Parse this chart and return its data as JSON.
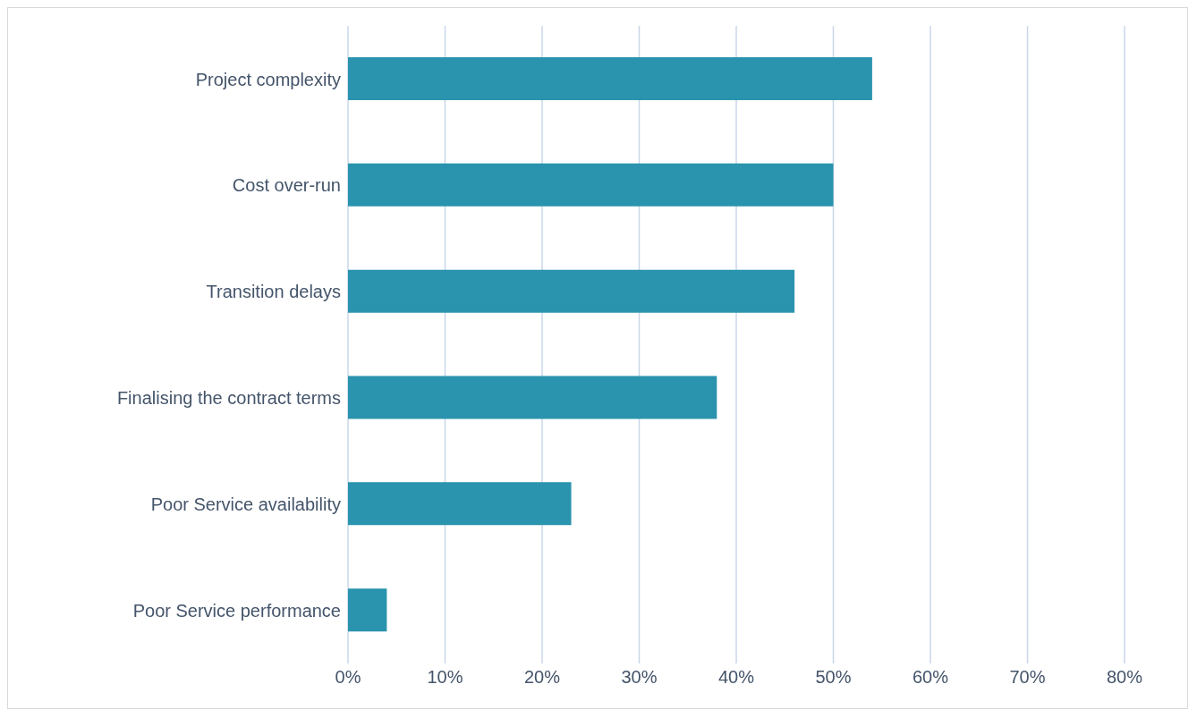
{
  "chart_data": {
    "type": "bar",
    "orientation": "horizontal",
    "categories": [
      "Project complexity",
      "Cost over-run",
      "Transition delays",
      "Finalising the contract terms",
      "Poor Service availability",
      "Poor Service performance"
    ],
    "values": [
      54,
      50,
      46,
      38,
      23,
      4
    ],
    "color": "#2a93ad",
    "xlim": [
      0,
      80
    ],
    "xticks": [
      {
        "value": 0,
        "label": "0%"
      },
      {
        "value": 10,
        "label": "10%"
      },
      {
        "value": 20,
        "label": "20%"
      },
      {
        "value": 30,
        "label": "30%"
      },
      {
        "value": 40,
        "label": "40%"
      },
      {
        "value": 50,
        "label": "50%"
      },
      {
        "value": 60,
        "label": "60%"
      },
      {
        "value": 70,
        "label": "70%"
      },
      {
        "value": 80,
        "label": "80%"
      }
    ],
    "grid": "x",
    "legend": false
  }
}
